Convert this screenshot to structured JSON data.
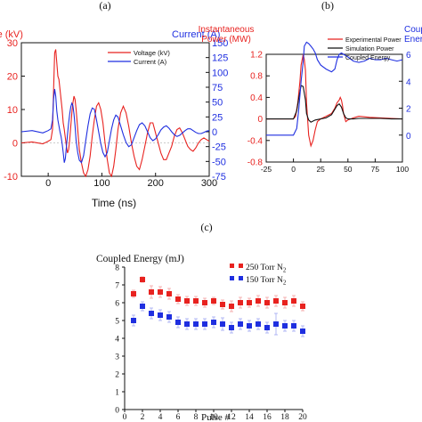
{
  "colors": {
    "red": "#e8221f",
    "blue": "#1f2fe0",
    "black": "#111111",
    "grid": "#999999"
  },
  "chart_data": [
    {
      "panel_label": "(a)",
      "type": "line",
      "ylabel_left": "Voltage (kV)",
      "ylabel_right": "Current (A)",
      "xlabel": "Time (ns)",
      "xlim": [
        -50,
        300
      ],
      "ylim_left": [
        -10,
        30
      ],
      "ylim_right": [
        -75,
        150
      ],
      "x_ticks": [
        "0",
        "100",
        "200",
        "300"
      ],
      "y_ticks_left": [
        "-10",
        "0",
        "10",
        "20",
        "30"
      ],
      "y_ticks_right": [
        "-75",
        "-50",
        "-25",
        "0",
        "25",
        "50",
        "75",
        "100",
        "125",
        "150"
      ],
      "legend_position": "top-right",
      "series": [
        {
          "name": "Voltage (kV)",
          "axis": "left",
          "color": "#e8221f",
          "x": [
            -50,
            -30,
            -10,
            0,
            5,
            8,
            10,
            12,
            14,
            16,
            18,
            20,
            22,
            24,
            26,
            28,
            30,
            32,
            34,
            36,
            38,
            40,
            42,
            44,
            46,
            48,
            50,
            52,
            55,
            58,
            62,
            66,
            70,
            74,
            78,
            82,
            86,
            90,
            94,
            98,
            102,
            106,
            110,
            114,
            118,
            122,
            126,
            130,
            135,
            140,
            145,
            150,
            155,
            160,
            165,
            170,
            175,
            180,
            185,
            190,
            195,
            200,
            205,
            210,
            215,
            220,
            225,
            230,
            235,
            240,
            245,
            250,
            255,
            260,
            265,
            270,
            275,
            280,
            285,
            290,
            295,
            300
          ],
          "values": [
            0,
            0.3,
            -0.3,
            0.5,
            1,
            4,
            16,
            27,
            28,
            24,
            20,
            19,
            16,
            13,
            10,
            6,
            4,
            1.5,
            -1,
            -3,
            -2,
            1,
            5,
            9,
            12,
            14,
            13,
            10,
            4,
            -2,
            -6,
            -9,
            -10,
            -8,
            -4,
            2,
            7,
            11,
            12,
            10,
            6,
            0,
            -5,
            -9,
            -10,
            -7,
            -2,
            4,
            9,
            11,
            9,
            5,
            0,
            -4,
            -7,
            -8,
            -5,
            -1,
            3,
            6,
            6,
            3,
            0,
            -3,
            -5,
            -5,
            -3,
            -1,
            2,
            4,
            4.5,
            3,
            1,
            -1,
            -2,
            -2.5,
            -1.5,
            0,
            1,
            1.5,
            1,
            0.5
          ]
        },
        {
          "name": "Current (A)",
          "axis": "right",
          "color": "#1f2fe0",
          "x": [
            -50,
            -30,
            -10,
            0,
            5,
            8,
            10,
            12,
            14,
            16,
            18,
            20,
            22,
            24,
            26,
            28,
            30,
            32,
            34,
            36,
            38,
            40,
            42,
            44,
            46,
            48,
            50,
            52,
            55,
            58,
            62,
            66,
            70,
            74,
            78,
            82,
            86,
            90,
            94,
            98,
            102,
            106,
            110,
            114,
            118,
            122,
            126,
            130,
            135,
            140,
            145,
            150,
            155,
            160,
            165,
            170,
            175,
            180,
            185,
            190,
            195,
            200,
            205,
            210,
            215,
            220,
            225,
            230,
            235,
            240,
            245,
            250,
            255,
            260,
            265,
            270,
            275,
            280,
            285,
            290,
            295,
            300
          ],
          "values": [
            0,
            2,
            -2,
            2,
            5,
            20,
            55,
            72,
            60,
            35,
            20,
            10,
            0,
            -8,
            -20,
            -35,
            -52,
            -45,
            -25,
            -5,
            15,
            30,
            42,
            48,
            44,
            30,
            10,
            -15,
            -35,
            -48,
            -52,
            -40,
            -15,
            10,
            30,
            40,
            38,
            20,
            0,
            -20,
            -35,
            -42,
            -35,
            -15,
            5,
            20,
            28,
            25,
            10,
            -5,
            -18,
            -25,
            -22,
            -10,
            2,
            12,
            15,
            10,
            0,
            -10,
            -15,
            -12,
            -5,
            3,
            8,
            10,
            6,
            0,
            -5,
            -8,
            -6,
            -2,
            2,
            5,
            5,
            2,
            -1,
            -3,
            -3,
            -1,
            1,
            2
          ]
        }
      ]
    },
    {
      "panel_label": "(b)",
      "type": "line",
      "ylabel_left": "Instantaneous\nPower (MW)",
      "ylabel_right": "Coupled\nEnergy",
      "xlim": [
        -25,
        100
      ],
      "ylim_left": [
        -0.8,
        1.2
      ],
      "ylim_right": [
        -2,
        6
      ],
      "x_ticks": [
        "-25",
        "0",
        "25",
        "50",
        "75",
        "100"
      ],
      "y_ticks_left": [
        "-0.8",
        "-0.4",
        "0",
        "0.4",
        "0.8",
        "1.2"
      ],
      "y_ticks_right": [
        "0",
        "2",
        "4",
        "6"
      ],
      "legend_position": "top-right",
      "series": [
        {
          "name": "Experimental Power",
          "axis": "left",
          "color": "#e8221f",
          "x": [
            -25,
            -10,
            0,
            2,
            4,
            6,
            7,
            8,
            9,
            10,
            11,
            12,
            14,
            16,
            18,
            20,
            22,
            25,
            30,
            35,
            38,
            40,
            42,
            43,
            44,
            45,
            46,
            48,
            50,
            55,
            60,
            70,
            80,
            90,
            100
          ],
          "values": [
            0,
            0,
            0,
            0.05,
            0.3,
            0.7,
            1.0,
            1.1,
            1.2,
            1.1,
            0.9,
            0.3,
            -0.3,
            -0.5,
            -0.4,
            -0.2,
            -0.05,
            0,
            0.05,
            0.1,
            0.2,
            0.3,
            0.35,
            0.4,
            0.35,
            0.25,
            0.1,
            -0.05,
            -0.02,
            0.02,
            0.05,
            0.03,
            0.02,
            0.01,
            0
          ]
        },
        {
          "name": "Simulation Power",
          "axis": "left",
          "color": "#111111",
          "x": [
            -25,
            -10,
            0,
            3,
            5,
            7,
            9,
            11,
            12,
            14,
            16,
            18,
            20,
            25,
            30,
            35,
            38,
            40,
            42,
            44,
            46,
            48,
            50,
            55,
            60,
            70,
            80,
            90,
            100
          ],
          "values": [
            0,
            0,
            0,
            0.15,
            0.4,
            0.62,
            0.6,
            0.35,
            0.1,
            -0.02,
            -0.06,
            -0.04,
            -0.02,
            0,
            0.02,
            0.08,
            0.18,
            0.25,
            0.28,
            0.22,
            0.1,
            0.02,
            0,
            0,
            0.01,
            0.01,
            0.01,
            0,
            0
          ]
        },
        {
          "name": "Coupled Energy",
          "axis": "right",
          "color": "#1f2fe0",
          "x": [
            -25,
            -10,
            0,
            3,
            5,
            7,
            9,
            10,
            12,
            14,
            16,
            18,
            20,
            22,
            25,
            30,
            35,
            38,
            40,
            42,
            44,
            46,
            48,
            50,
            55,
            60,
            65,
            70,
            75,
            80,
            85,
            90,
            95,
            100
          ],
          "values": [
            0,
            0,
            0,
            0.5,
            2,
            4,
            5.5,
            6.6,
            6.9,
            6.8,
            6.6,
            6.4,
            6.1,
            5.6,
            5.2,
            4.9,
            4.7,
            4.9,
            5.6,
            6.0,
            6.1,
            6.0,
            5.9,
            5.8,
            5.5,
            5.4,
            5.5,
            5.7,
            5.6,
            5.6,
            5.7,
            5.6,
            5.5,
            5.6
          ]
        }
      ]
    },
    {
      "panel_label": "(c)",
      "type": "scatter",
      "title": "Coupled Energy (mJ)",
      "xlabel": "Pulse #",
      "xlim": [
        0,
        20
      ],
      "ylim": [
        0,
        8
      ],
      "x_ticks": [
        "0",
        "2",
        "4",
        "6",
        "8",
        "10",
        "12",
        "14",
        "16",
        "18",
        "20"
      ],
      "y_ticks": [
        "0",
        "1",
        "2",
        "3",
        "4",
        "5",
        "6",
        "7",
        "8"
      ],
      "legend_position": "top-right",
      "x": [
        1,
        2,
        3,
        4,
        5,
        6,
        7,
        8,
        9,
        10,
        11,
        12,
        13,
        14,
        15,
        16,
        17,
        18,
        19,
        20
      ],
      "series": [
        {
          "name": "250 Torr N",
          "subscript": "2",
          "color": "#e8221f",
          "values": [
            6.5,
            7.3,
            6.6,
            6.6,
            6.5,
            6.2,
            6.1,
            6.1,
            6.0,
            6.1,
            5.9,
            5.8,
            6.0,
            6.0,
            6.1,
            6.0,
            6.1,
            6.0,
            6.1,
            5.8
          ],
          "errors": [
            0.2,
            0.15,
            0.35,
            0.3,
            0.3,
            0.25,
            0.25,
            0.25,
            0.25,
            0.2,
            0.25,
            0.3,
            0.3,
            0.25,
            0.3,
            0.3,
            0.3,
            0.3,
            0.3,
            0.25
          ]
        },
        {
          "name": "150 Torr N",
          "subscript": "2",
          "color": "#1f2fe0",
          "values": [
            5.0,
            5.8,
            5.4,
            5.3,
            5.2,
            4.9,
            4.8,
            4.8,
            4.8,
            4.9,
            4.8,
            4.6,
            4.8,
            4.7,
            4.8,
            4.6,
            4.8,
            4.7,
            4.7,
            4.4
          ],
          "errors": [
            0.3,
            0.25,
            0.3,
            0.3,
            0.3,
            0.3,
            0.3,
            0.3,
            0.3,
            0.3,
            0.35,
            0.3,
            0.3,
            0.3,
            0.3,
            0.3,
            0.6,
            0.3,
            0.3,
            0.3
          ]
        }
      ]
    }
  ]
}
